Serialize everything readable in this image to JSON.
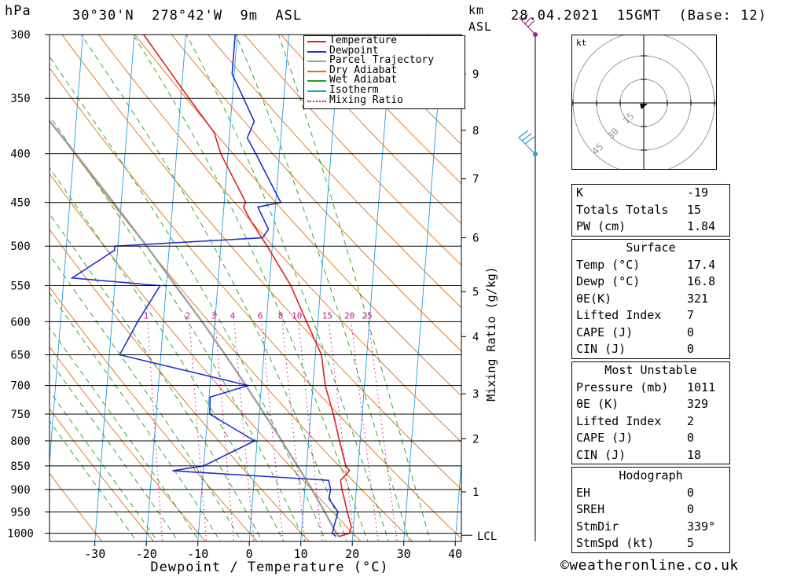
{
  "header": {
    "pressure_unit": "hPa",
    "location": "30°30'N  278°42'W  9m  ASL",
    "height_unit": "km",
    "height_unit_sub": "ASL",
    "datetime": "28.04.2021  15GMT  (Base: 12)"
  },
  "legend": [
    {
      "label": "Temperature",
      "color": "#e02020",
      "style": "solid"
    },
    {
      "label": "Dewpoint",
      "color": "#2030d0",
      "style": "solid"
    },
    {
      "label": "Parcel Trajectory",
      "color": "#a0a0a0",
      "style": "solid"
    },
    {
      "label": "Dry Adiabat",
      "color": "#e07010",
      "style": "solid"
    },
    {
      "label": "Wet Adiabat",
      "color": "#20a020",
      "style": "solid"
    },
    {
      "label": "Isotherm",
      "color": "#20a0e0",
      "style": "solid"
    },
    {
      "label": "Mixing Ratio",
      "color": "#d01090",
      "style": "dotted"
    }
  ],
  "chart_data": {
    "type": "line",
    "subtype": "skew-t log-p",
    "xlabel": "Dewpoint / Temperature (°C)",
    "x_ticks": [
      -30,
      -20,
      -10,
      0,
      10,
      20,
      30,
      40
    ],
    "xlim": [
      -40,
      40
    ],
    "ylabel": "hPa",
    "y_log": true,
    "ylim": [
      1020,
      300
    ],
    "pressure_ticks": [
      300,
      350,
      400,
      450,
      500,
      550,
      600,
      650,
      700,
      750,
      800,
      850,
      900,
      950,
      1000
    ],
    "km_axis_label": "km ASL",
    "km_ticks": [
      {
        "label": "1",
        "p": 905
      },
      {
        "label": "2",
        "p": 796
      },
      {
        "label": "3",
        "p": 714
      },
      {
        "label": "4",
        "p": 622
      },
      {
        "label": "5",
        "p": 558
      },
      {
        "label": "6",
        "p": 490
      },
      {
        "label": "7",
        "p": 425
      },
      {
        "label": "8",
        "p": 378
      },
      {
        "label": "9",
        "p": 330
      }
    ],
    "lcl_label": "LCL",
    "lcl_p": 1005,
    "mixing_ratio_label": "Mixing Ratio (g/kg)",
    "mixing_ratio_values": [
      1,
      2,
      3,
      4,
      6,
      8,
      10,
      15,
      20,
      25
    ],
    "series": [
      {
        "name": "Temperature",
        "color": "#e02020",
        "points": [
          [
            1008,
            17.4
          ],
          [
            1000,
            19.3
          ],
          [
            985,
            19.6
          ],
          [
            950,
            18.6
          ],
          [
            920,
            17.8
          ],
          [
            900,
            17.2
          ],
          [
            880,
            16.8
          ],
          [
            860,
            18.4
          ],
          [
            850,
            17.6
          ],
          [
            800,
            16.0
          ],
          [
            750,
            14.4
          ],
          [
            700,
            12.4
          ],
          [
            650,
            11.2
          ],
          [
            600,
            7.8
          ],
          [
            550,
            4.2
          ],
          [
            500,
            -1.0
          ],
          [
            470,
            -4.6
          ],
          [
            455,
            -6.2
          ],
          [
            450,
            -5.8
          ],
          [
            400,
            -11.4
          ],
          [
            380,
            -13.0
          ],
          [
            350,
            -18.4
          ],
          [
            300,
            -28.2
          ]
        ]
      },
      {
        "name": "Dewpoint",
        "color": "#2030d0",
        "points": [
          [
            1008,
            16.8
          ],
          [
            1000,
            16.0
          ],
          [
            985,
            16.2
          ],
          [
            950,
            16.8
          ],
          [
            920,
            14.8
          ],
          [
            900,
            15.0
          ],
          [
            880,
            14.5
          ],
          [
            860,
            -16.0
          ],
          [
            850,
            -10.0
          ],
          [
            800,
            -0.5
          ],
          [
            750,
            -9.6
          ],
          [
            720,
            -9.8
          ],
          [
            700,
            -2.6
          ],
          [
            650,
            -28.0
          ],
          [
            600,
            -25.0
          ],
          [
            550,
            -21.2
          ],
          [
            540,
            -38.4
          ],
          [
            505,
            -30.6
          ],
          [
            500,
            -30.6
          ],
          [
            490,
            -2.0
          ],
          [
            480,
            -1.0
          ],
          [
            455,
            -3.4
          ],
          [
            450,
            1.0
          ],
          [
            400,
            -4.6
          ],
          [
            385,
            -6.5
          ],
          [
            370,
            -5.4
          ],
          [
            350,
            -7.8
          ],
          [
            330,
            -10.4
          ],
          [
            315,
            -10.4
          ],
          [
            300,
            -10.4
          ]
        ]
      },
      {
        "name": "Parcel Trajectory",
        "color": "#a0a0a0",
        "points": [
          [
            1008,
            17.4
          ],
          [
            1000,
            16.8
          ],
          [
            950,
            14.2
          ],
          [
            900,
            11.4
          ],
          [
            850,
            8.2
          ],
          [
            800,
            4.8
          ],
          [
            750,
            1.0
          ],
          [
            700,
            -3.0
          ],
          [
            650,
            -7.5
          ],
          [
            600,
            -12.5
          ],
          [
            550,
            -18.2
          ],
          [
            500,
            -24.4
          ],
          [
            450,
            -31.5
          ],
          [
            400,
            -39.6
          ],
          [
            350,
            -49.0
          ],
          [
            300,
            -59.8
          ]
        ]
      }
    ]
  },
  "hodograph": {
    "unit": "kt",
    "ring_labels": [
      "15",
      "30",
      "45"
    ]
  },
  "indices": {
    "k_label": "K",
    "k_value": "-19",
    "tt_label": "Totals Totals",
    "tt_value": "15",
    "pw_label": "PW (cm)",
    "pw_value": "1.84"
  },
  "surface": {
    "title": "Surface",
    "rows": [
      {
        "label": "Temp (°C)",
        "value": "17.4"
      },
      {
        "label": "Dewp (°C)",
        "value": "16.8"
      },
      {
        "label": "θE(K)",
        "value": "321"
      },
      {
        "label": "Lifted Index",
        "value": "7"
      },
      {
        "label": "CAPE (J)",
        "value": "0"
      },
      {
        "label": "CIN (J)",
        "value": "0"
      }
    ]
  },
  "most_unstable": {
    "title": "Most Unstable",
    "rows": [
      {
        "label": "Pressure (mb)",
        "value": "1011"
      },
      {
        "label": "θE (K)",
        "value": "329"
      },
      {
        "label": "Lifted Index",
        "value": "2"
      },
      {
        "label": "CAPE (J)",
        "value": "0"
      },
      {
        "label": "CIN (J)",
        "value": "18"
      }
    ]
  },
  "hodograph_table": {
    "title": "Hodograph",
    "rows": [
      {
        "label": "EH",
        "value": "0"
      },
      {
        "label": "SREH",
        "value": "0"
      },
      {
        "label": "StmDir",
        "value": "339°"
      },
      {
        "label": "StmSpd (kt)",
        "value": "5"
      }
    ]
  },
  "footer": "©weatheronline.co.uk"
}
